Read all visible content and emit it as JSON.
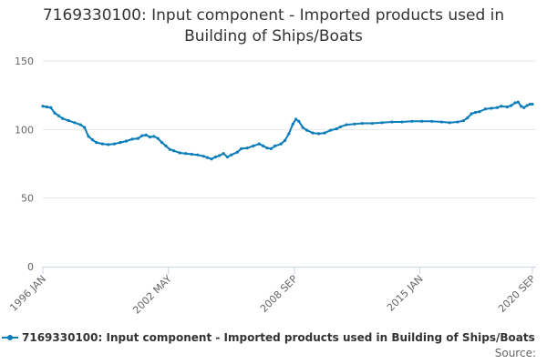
{
  "title_line1": "7169330100: Input component - Imported products used in",
  "title_line2": "Building of Ships/Boats",
  "source_label": "Source:",
  "colors": {
    "series": "#0a7cba",
    "grid": "#e6e6e6",
    "axis": "#ccd6eb"
  },
  "chart_data": {
    "type": "line",
    "title": "7169330100: Input component - Imported products used in Building of Ships/Boats",
    "ylim": [
      0,
      150
    ],
    "yticks": [
      0,
      50,
      100,
      150
    ],
    "xlim": [
      1996.0,
      2020.67
    ],
    "xticks": [
      {
        "label": "1996 JAN",
        "x": 1996.0
      },
      {
        "label": "2002 MAY",
        "x": 2002.33
      },
      {
        "label": "2008 SEP",
        "x": 2008.67
      },
      {
        "label": "2015 JAN",
        "x": 2015.0
      },
      {
        "label": "2020 SEP",
        "x": 2020.67
      }
    ],
    "grid": "horizontal",
    "legend_position": "bottom",
    "series": [
      {
        "name": "7169330100: Input component - Imported products used in Building of Ships/Boats",
        "points": [
          [
            1996.0,
            117
          ],
          [
            1996.2,
            116.5
          ],
          [
            1996.4,
            116
          ],
          [
            1996.6,
            112
          ],
          [
            1996.8,
            110
          ],
          [
            1997.0,
            108
          ],
          [
            1997.3,
            106.5
          ],
          [
            1997.6,
            105
          ],
          [
            1997.9,
            103.5
          ],
          [
            1998.1,
            101.5
          ],
          [
            1998.3,
            95
          ],
          [
            1998.5,
            92.5
          ],
          [
            1998.7,
            90.5
          ],
          [
            1999.0,
            89.5
          ],
          [
            1999.3,
            89
          ],
          [
            1999.6,
            89.5
          ],
          [
            1999.9,
            90.5
          ],
          [
            2000.2,
            91.5
          ],
          [
            2000.5,
            93
          ],
          [
            2000.8,
            93.5
          ],
          [
            2001.0,
            95.5
          ],
          [
            2001.2,
            96
          ],
          [
            2001.4,
            94.5
          ],
          [
            2001.6,
            95
          ],
          [
            2001.8,
            93.5
          ],
          [
            2002.0,
            90.5
          ],
          [
            2002.2,
            88
          ],
          [
            2002.4,
            85.5
          ],
          [
            2002.6,
            84.5
          ],
          [
            2002.9,
            83
          ],
          [
            2003.2,
            82.5
          ],
          [
            2003.5,
            82
          ],
          [
            2003.8,
            81.5
          ],
          [
            2004.1,
            80.5
          ],
          [
            2004.3,
            79.5
          ],
          [
            2004.5,
            78.5
          ],
          [
            2004.7,
            80
          ],
          [
            2004.9,
            81
          ],
          [
            2005.1,
            82.5
          ],
          [
            2005.3,
            80
          ],
          [
            2005.5,
            81.5
          ],
          [
            2005.8,
            83.5
          ],
          [
            2006.0,
            86
          ],
          [
            2006.3,
            86.5
          ],
          [
            2006.6,
            88
          ],
          [
            2006.9,
            89.5
          ],
          [
            2007.1,
            88
          ],
          [
            2007.3,
            86.5
          ],
          [
            2007.5,
            86
          ],
          [
            2007.7,
            88
          ],
          [
            2008.0,
            89.5
          ],
          [
            2008.2,
            92
          ],
          [
            2008.4,
            97
          ],
          [
            2008.6,
            104
          ],
          [
            2008.75,
            107.5
          ],
          [
            2008.9,
            106
          ],
          [
            2009.1,
            101.5
          ],
          [
            2009.3,
            99.5
          ],
          [
            2009.6,
            97.5
          ],
          [
            2009.9,
            97
          ],
          [
            2010.2,
            97.5
          ],
          [
            2010.5,
            99.5
          ],
          [
            2010.8,
            100.5
          ],
          [
            2011.0,
            102
          ],
          [
            2011.3,
            103.5
          ],
          [
            2011.7,
            104
          ],
          [
            2012.1,
            104.5
          ],
          [
            2012.6,
            104.5
          ],
          [
            2013.1,
            105
          ],
          [
            2013.6,
            105.5
          ],
          [
            2014.1,
            105.5
          ],
          [
            2014.6,
            106
          ],
          [
            2015.1,
            106
          ],
          [
            2015.6,
            106
          ],
          [
            2016.1,
            105.5
          ],
          [
            2016.5,
            105
          ],
          [
            2016.9,
            105.5
          ],
          [
            2017.2,
            106.5
          ],
          [
            2017.4,
            108.5
          ],
          [
            2017.6,
            111.5
          ],
          [
            2017.8,
            112.5
          ],
          [
            2018.0,
            113
          ],
          [
            2018.3,
            115
          ],
          [
            2018.6,
            115.5
          ],
          [
            2018.9,
            116
          ],
          [
            2019.1,
            117
          ],
          [
            2019.4,
            116.5
          ],
          [
            2019.6,
            117.5
          ],
          [
            2019.8,
            119.5
          ],
          [
            2019.95,
            120
          ],
          [
            2020.1,
            117
          ],
          [
            2020.25,
            116
          ],
          [
            2020.4,
            117.5
          ],
          [
            2020.55,
            118.5
          ],
          [
            2020.67,
            118.5
          ]
        ]
      }
    ]
  }
}
